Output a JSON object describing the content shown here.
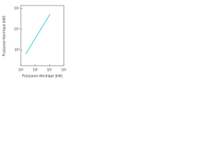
{
  "chart_data": {
    "type": "line",
    "log_x": true,
    "log_y": true,
    "x_label": "Puissance électrique (kW)",
    "y_label": "Puissance thermique (kW)",
    "xlim": [
      100,
      100000
    ],
    "ylim": [
      170,
      140000
    ],
    "xticks": [
      {
        "value": 100,
        "label": "10²"
      },
      {
        "value": 1000,
        "label": "10³"
      },
      {
        "value": 10000,
        "label": "10⁴"
      },
      {
        "value": 100000,
        "label": "10⁵"
      }
    ],
    "yticks": [
      {
        "value": 1000,
        "label": "10³"
      },
      {
        "value": 10000,
        "label": "10⁴"
      },
      {
        "value": 100000,
        "label": "10⁵"
      }
    ],
    "series": [
      {
        "color": "#4fd6d6",
        "x": [
          220,
          11000
        ],
        "values": [
          630,
          54000
        ]
      }
    ]
  }
}
